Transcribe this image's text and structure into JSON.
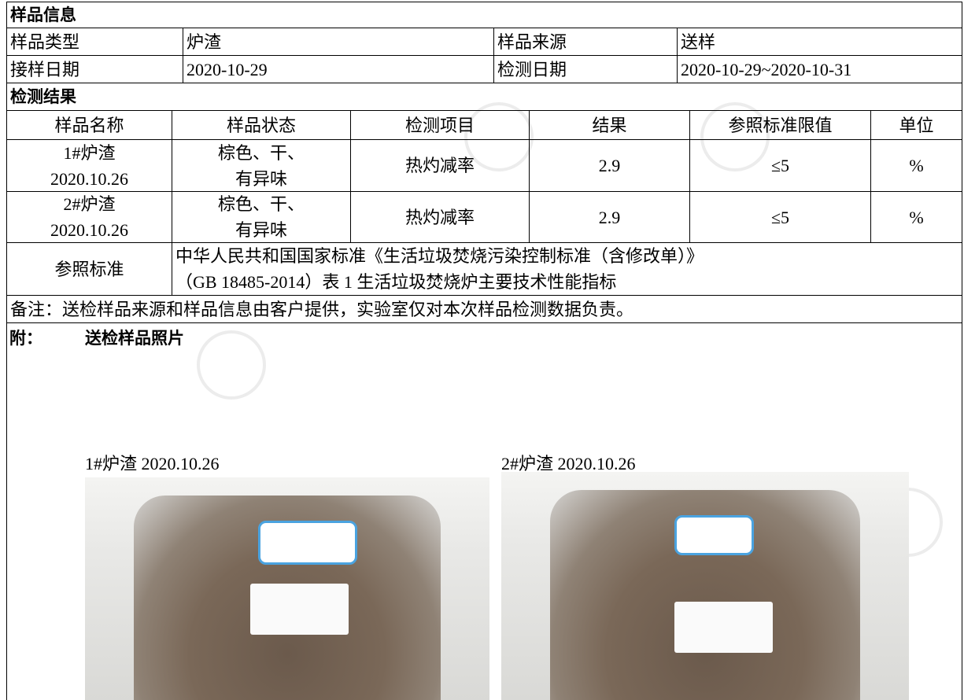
{
  "sample_info": {
    "title": "样品信息",
    "rows": [
      [
        "样品类型",
        "炉渣",
        "样品来源",
        "送样"
      ],
      [
        "接样日期",
        "2020-10-29",
        "检测日期",
        "2020-10-29~2020-10-31"
      ]
    ]
  },
  "results": {
    "title": "检测结果",
    "header": [
      "样品名称",
      "样品状态",
      "检测项目",
      "结果",
      "参照标准限值",
      "单位"
    ],
    "rows": [
      {
        "name": [
          "1#炉渣",
          "2020.10.26"
        ],
        "state": [
          "棕色、干、",
          "有异味"
        ],
        "item": "热灼减率",
        "result": "2.9",
        "limit": "≤5",
        "unit": "%"
      },
      {
        "name": [
          "2#炉渣",
          "2020.10.26"
        ],
        "state": [
          "棕色、干、",
          "有异味"
        ],
        "item": "热灼减率",
        "result": "2.9",
        "limit": "≤5",
        "unit": "%"
      }
    ]
  },
  "reference": {
    "label": "参照标准",
    "lines": [
      "中华人民共和国国家标准《生活垃圾焚烧污染控制标准（含修改单）》",
      "（GB 18485-2014）表 1  生活垃圾焚烧炉主要技术性能指标"
    ]
  },
  "remark": "备注：送检样品来源和样品信息由客户提供，实验室仅对本次样品检测数据负责。",
  "attachment": {
    "label": "附：",
    "title": "送检样品照片",
    "photos": [
      "1#炉渣 2020.10.26",
      "2#炉渣 2020.10.26"
    ]
  }
}
